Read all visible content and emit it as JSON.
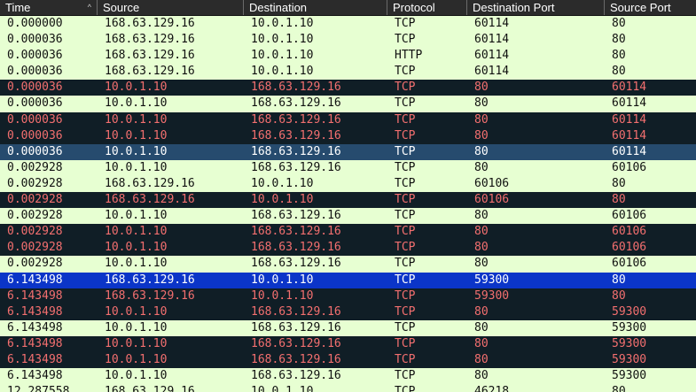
{
  "header": {
    "columns": [
      "Time",
      "Source",
      "Destination",
      "Protocol",
      "Destination Port",
      "Source Port"
    ],
    "sort_indicator": "^"
  },
  "rows": [
    {
      "style": "normal",
      "cells": [
        "0.000000",
        "168.63.129.16",
        "10.0.1.10",
        "TCP",
        "60114",
        "80"
      ]
    },
    {
      "style": "normal",
      "cells": [
        "0.000036",
        "168.63.129.16",
        "10.0.1.10",
        "TCP",
        "60114",
        "80"
      ]
    },
    {
      "style": "normal",
      "cells": [
        "0.000036",
        "168.63.129.16",
        "10.0.1.10",
        "HTTP",
        "60114",
        "80"
      ]
    },
    {
      "style": "normal",
      "cells": [
        "0.000036",
        "168.63.129.16",
        "10.0.1.10",
        "TCP",
        "60114",
        "80"
      ]
    },
    {
      "style": "err",
      "cells": [
        "0.000036",
        "10.0.1.10",
        "168.63.129.16",
        "TCP",
        "80",
        "60114"
      ]
    },
    {
      "style": "normal",
      "cells": [
        "0.000036",
        "10.0.1.10",
        "168.63.129.16",
        "TCP",
        "80",
        "60114"
      ]
    },
    {
      "style": "err",
      "cells": [
        "0.000036",
        "10.0.1.10",
        "168.63.129.16",
        "TCP",
        "80",
        "60114"
      ]
    },
    {
      "style": "err",
      "cells": [
        "0.000036",
        "10.0.1.10",
        "168.63.129.16",
        "TCP",
        "80",
        "60114"
      ]
    },
    {
      "style": "sel",
      "cells": [
        "0.000036",
        "10.0.1.10",
        "168.63.129.16",
        "TCP",
        "80",
        "60114"
      ]
    },
    {
      "style": "normal",
      "cells": [
        "0.002928",
        "10.0.1.10",
        "168.63.129.16",
        "TCP",
        "80",
        "60106"
      ]
    },
    {
      "style": "normal",
      "cells": [
        "0.002928",
        "168.63.129.16",
        "10.0.1.10",
        "TCP",
        "60106",
        "80"
      ]
    },
    {
      "style": "err",
      "cells": [
        "0.002928",
        "168.63.129.16",
        "10.0.1.10",
        "TCP",
        "60106",
        "80"
      ]
    },
    {
      "style": "normal",
      "cells": [
        "0.002928",
        "10.0.1.10",
        "168.63.129.16",
        "TCP",
        "80",
        "60106"
      ]
    },
    {
      "style": "err",
      "cells": [
        "0.002928",
        "10.0.1.10",
        "168.63.129.16",
        "TCP",
        "80",
        "60106"
      ]
    },
    {
      "style": "err",
      "cells": [
        "0.002928",
        "10.0.1.10",
        "168.63.129.16",
        "TCP",
        "80",
        "60106"
      ]
    },
    {
      "style": "normal",
      "cells": [
        "0.002928",
        "10.0.1.10",
        "168.63.129.16",
        "TCP",
        "80",
        "60106"
      ]
    },
    {
      "style": "sel2",
      "cells": [
        "6.143498",
        "168.63.129.16",
        "10.0.1.10",
        "TCP",
        "59300",
        "80"
      ]
    },
    {
      "style": "err",
      "cells": [
        "6.143498",
        "168.63.129.16",
        "10.0.1.10",
        "TCP",
        "59300",
        "80"
      ]
    },
    {
      "style": "err",
      "cells": [
        "6.143498",
        "10.0.1.10",
        "168.63.129.16",
        "TCP",
        "80",
        "59300"
      ]
    },
    {
      "style": "normal",
      "cells": [
        "6.143498",
        "10.0.1.10",
        "168.63.129.16",
        "TCP",
        "80",
        "59300"
      ]
    },
    {
      "style": "err",
      "cells": [
        "6.143498",
        "10.0.1.10",
        "168.63.129.16",
        "TCP",
        "80",
        "59300"
      ]
    },
    {
      "style": "err",
      "cells": [
        "6.143498",
        "10.0.1.10",
        "168.63.129.16",
        "TCP",
        "80",
        "59300"
      ]
    },
    {
      "style": "normal",
      "cells": [
        "6.143498",
        "10.0.1.10",
        "168.63.129.16",
        "TCP",
        "80",
        "59300"
      ]
    },
    {
      "style": "normal",
      "cells": [
        "12.287558",
        "168.63.129.16",
        "10.0.1.10",
        "TCP",
        "46218",
        "80"
      ]
    }
  ]
}
